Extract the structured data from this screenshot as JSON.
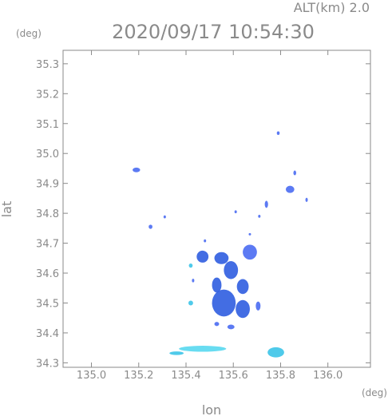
{
  "header": {
    "altitude_label": "ALT(km)  2.0",
    "timestamp": "2020/09/17 10:54:30",
    "y_unit": "(deg)",
    "x_unit": "(deg)"
  },
  "chart_data": {
    "type": "scatter",
    "xlabel": "lon",
    "ylabel": "lat",
    "xlim": [
      134.88,
      136.18
    ],
    "ylim": [
      34.285,
      35.345
    ],
    "xticks": [
      135.0,
      135.2,
      135.4,
      135.6,
      135.8,
      136.0
    ],
    "xtick_labels": [
      "135.0",
      "135.2",
      "135.4",
      "135.6",
      "135.8",
      "136.0"
    ],
    "yticks": [
      34.3,
      34.4,
      34.5,
      34.6,
      34.7,
      34.8,
      34.9,
      35.0,
      35.1,
      35.2,
      35.3
    ],
    "ytick_labels": [
      "34.3",
      "34.4",
      "34.5",
      "34.6",
      "34.7",
      "34.8",
      "34.9",
      "35.0",
      "35.1",
      "35.2",
      "35.3"
    ],
    "grid": false,
    "colors": {
      "axis": "#8a8a8a",
      "echo_weak": "#4a6cf2",
      "echo_mid": "#2f5de0",
      "echo_light": "#3cc4e8",
      "echo_cyan": "#58d8ef"
    },
    "echoes": [
      {
        "lon": 135.19,
        "lat": 34.945,
        "rx": 0.016,
        "ry": 0.008,
        "level": "weak"
      },
      {
        "lon": 135.25,
        "lat": 34.755,
        "rx": 0.008,
        "ry": 0.007,
        "level": "weak"
      },
      {
        "lon": 135.79,
        "lat": 35.068,
        "rx": 0.006,
        "ry": 0.006,
        "level": "weak"
      },
      {
        "lon": 135.84,
        "lat": 34.88,
        "rx": 0.018,
        "ry": 0.012,
        "level": "weak"
      },
      {
        "lon": 135.86,
        "lat": 34.935,
        "rx": 0.006,
        "ry": 0.008,
        "level": "weak"
      },
      {
        "lon": 135.91,
        "lat": 34.845,
        "rx": 0.005,
        "ry": 0.007,
        "level": "weak"
      },
      {
        "lon": 135.61,
        "lat": 34.805,
        "rx": 0.005,
        "ry": 0.005,
        "level": "weak"
      },
      {
        "lon": 135.74,
        "lat": 34.83,
        "rx": 0.007,
        "ry": 0.012,
        "level": "weak"
      },
      {
        "lon": 135.47,
        "lat": 34.655,
        "rx": 0.025,
        "ry": 0.02,
        "level": "mid"
      },
      {
        "lon": 135.55,
        "lat": 34.65,
        "rx": 0.03,
        "ry": 0.02,
        "level": "mid"
      },
      {
        "lon": 135.67,
        "lat": 34.67,
        "rx": 0.03,
        "ry": 0.025,
        "level": "weak"
      },
      {
        "lon": 135.59,
        "lat": 34.61,
        "rx": 0.03,
        "ry": 0.03,
        "level": "mid"
      },
      {
        "lon": 135.53,
        "lat": 34.56,
        "rx": 0.02,
        "ry": 0.025,
        "level": "mid"
      },
      {
        "lon": 135.56,
        "lat": 34.5,
        "rx": 0.05,
        "ry": 0.045,
        "level": "mid"
      },
      {
        "lon": 135.64,
        "lat": 34.555,
        "rx": 0.025,
        "ry": 0.025,
        "level": "mid"
      },
      {
        "lon": 135.64,
        "lat": 34.48,
        "rx": 0.03,
        "ry": 0.03,
        "level": "mid"
      },
      {
        "lon": 135.705,
        "lat": 34.49,
        "rx": 0.01,
        "ry": 0.015,
        "level": "weak"
      },
      {
        "lon": 135.59,
        "lat": 34.42,
        "rx": 0.015,
        "ry": 0.008,
        "level": "weak"
      },
      {
        "lon": 135.53,
        "lat": 34.43,
        "rx": 0.01,
        "ry": 0.007,
        "level": "weak"
      },
      {
        "lon": 135.42,
        "lat": 34.5,
        "rx": 0.01,
        "ry": 0.008,
        "level": "light"
      },
      {
        "lon": 135.42,
        "lat": 34.625,
        "rx": 0.008,
        "ry": 0.007,
        "level": "light"
      },
      {
        "lon": 135.43,
        "lat": 34.575,
        "rx": 0.005,
        "ry": 0.006,
        "level": "weak"
      },
      {
        "lon": 135.78,
        "lat": 34.335,
        "rx": 0.035,
        "ry": 0.017,
        "level": "light"
      },
      {
        "lon": 135.47,
        "lat": 34.347,
        "rx": 0.1,
        "ry": 0.01,
        "level": "cyan"
      },
      {
        "lon": 135.36,
        "lat": 34.332,
        "rx": 0.03,
        "ry": 0.006,
        "level": "light"
      },
      {
        "lon": 135.31,
        "lat": 34.788,
        "rx": 0.004,
        "ry": 0.005,
        "level": "weak"
      },
      {
        "lon": 135.71,
        "lat": 34.79,
        "rx": 0.005,
        "ry": 0.005,
        "level": "weak"
      },
      {
        "lon": 135.67,
        "lat": 34.73,
        "rx": 0.004,
        "ry": 0.004,
        "level": "weak"
      },
      {
        "lon": 135.48,
        "lat": 34.708,
        "rx": 0.005,
        "ry": 0.005,
        "level": "weak"
      }
    ]
  }
}
